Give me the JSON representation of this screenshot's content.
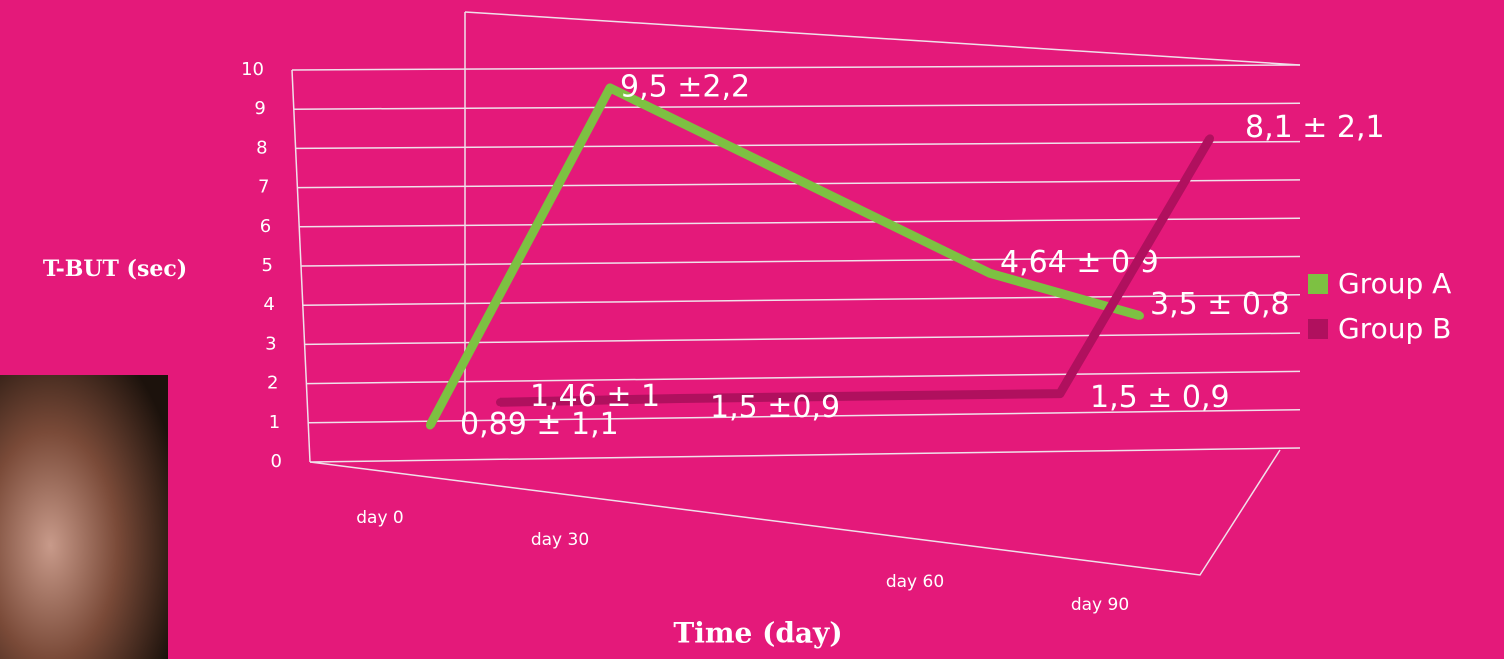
{
  "chart_data": {
    "type": "line",
    "y_axis_label": "T-BUT (sec)",
    "x_axis_label": "Time (day)",
    "categories": [
      "day 0",
      "day 30",
      "day 60",
      "day 90"
    ],
    "series": [
      {
        "name": "Group A",
        "color": "#7dc142",
        "values": [
          0.89,
          9.5,
          4.64,
          3.5
        ],
        "value_labels": [
          "0,89 ± 1,1",
          "9,5 ±2,2",
          "4,64 ± 0,9",
          "3,5 ± 0,8"
        ]
      },
      {
        "name": "Group B",
        "color": "#b0105e",
        "values": [
          1.46,
          1.5,
          1.5,
          8.1
        ],
        "value_labels": [
          "1,46 ± 1",
          "1,5 ±0,9",
          "1,5 ± 0,9",
          "8,1 ± 2,1"
        ]
      }
    ],
    "ylim": [
      0,
      10
    ],
    "yticks": [
      0,
      1,
      2,
      3,
      4,
      5,
      6,
      7,
      8,
      9,
      10
    ],
    "grid": true,
    "legend": "right"
  }
}
